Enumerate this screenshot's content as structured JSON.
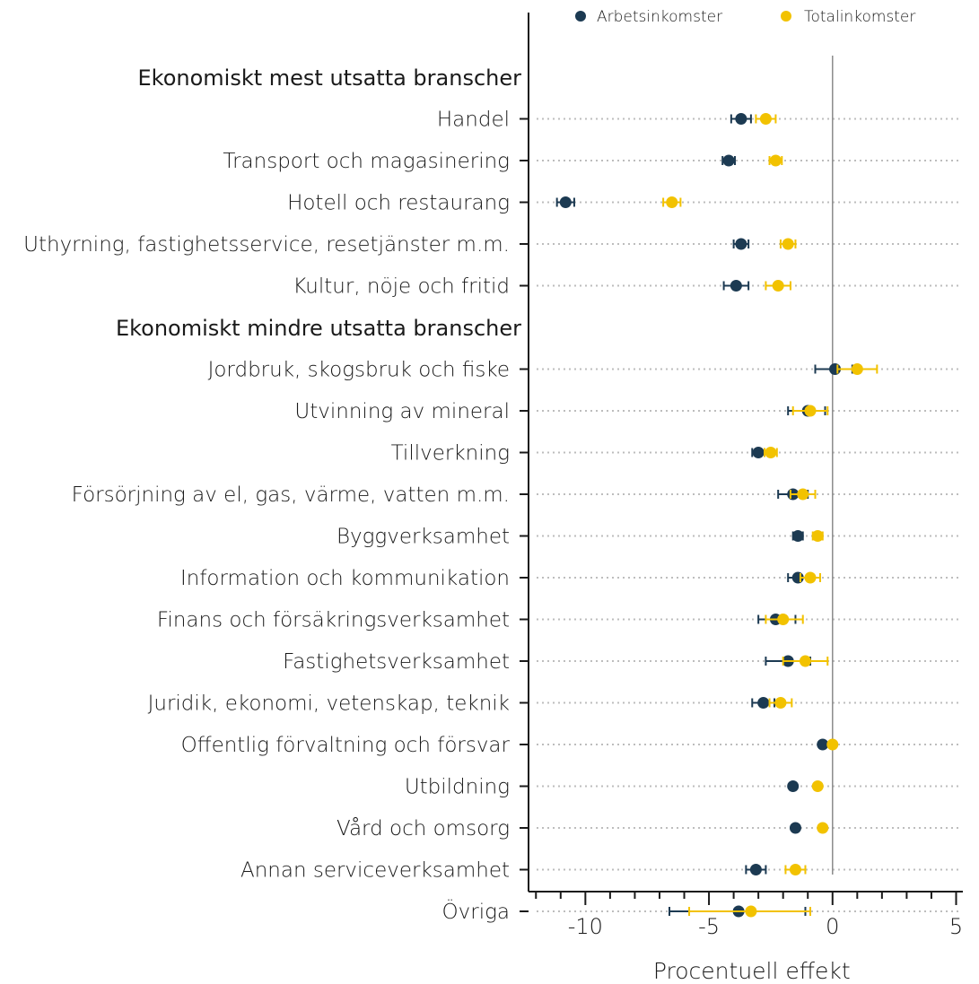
{
  "chart_data": {
    "type": "scatter",
    "subtype": "dot-and-whisker",
    "xlabel": "Procentuell effekt",
    "xlim": [
      -12.3,
      5.2
    ],
    "xticks": [
      -10,
      -5,
      0,
      5
    ],
    "legend_position": "top",
    "reference_line_x": 0,
    "grid": "dotted horizontal guides per category",
    "series": [
      {
        "name": "Arbetsinkomster",
        "color": "#1c3a52"
      },
      {
        "name": "Totalinkomster",
        "color": "#f2c200"
      }
    ],
    "groups": [
      {
        "label": "Ekonomiskt mest utsatta branscher",
        "rows": [
          {
            "label": "Handel",
            "arbete": {
              "est": -3.7,
              "lo": -4.1,
              "hi": -3.3
            },
            "total": {
              "est": -2.7,
              "lo": -3.1,
              "hi": -2.3
            }
          },
          {
            "label": "Transport och magasinering",
            "arbete": {
              "est": -4.2,
              "lo": -4.45,
              "hi": -3.95
            },
            "total": {
              "est": -2.3,
              "lo": -2.55,
              "hi": -2.05
            }
          },
          {
            "label": "Hotell och restaurang",
            "arbete": {
              "est": -10.8,
              "lo": -11.15,
              "hi": -10.45
            },
            "total": {
              "est": -6.5,
              "lo": -6.85,
              "hi": -6.15
            }
          },
          {
            "label": "Uthyrning, fastighetsservice, resetjänster m.m.",
            "arbete": {
              "est": -3.7,
              "lo": -4.0,
              "hi": -3.4
            },
            "total": {
              "est": -1.8,
              "lo": -2.1,
              "hi": -1.5
            }
          },
          {
            "label": "Kultur, nöje och fritid",
            "arbete": {
              "est": -3.9,
              "lo": -4.4,
              "hi": -3.4
            },
            "total": {
              "est": -2.2,
              "lo": -2.7,
              "hi": -1.7
            }
          }
        ]
      },
      {
        "label": "Ekonomiskt mindre utsatta branscher",
        "rows": [
          {
            "label": "Jordbruk, skogsbruk och fiske",
            "arbete": {
              "est": 0.1,
              "lo": -0.7,
              "hi": 0.8
            },
            "total": {
              "est": 1.0,
              "lo": 0.2,
              "hi": 1.8
            }
          },
          {
            "label": "Utvinning av mineral",
            "arbete": {
              "est": -1.0,
              "lo": -1.8,
              "hi": -0.3
            },
            "total": {
              "est": -0.9,
              "lo": -1.6,
              "hi": -0.2
            }
          },
          {
            "label": "Tillverkning",
            "arbete": {
              "est": -3.0,
              "lo": -3.25,
              "hi": -2.75
            },
            "total": {
              "est": -2.5,
              "lo": -2.75,
              "hi": -2.25
            }
          },
          {
            "label": "Försörjning av el, gas, värme, vatten m.m.",
            "arbete": {
              "est": -1.6,
              "lo": -2.2,
              "hi": -1.0
            },
            "total": {
              "est": -1.2,
              "lo": -1.7,
              "hi": -0.7
            }
          },
          {
            "label": "Byggverksamhet",
            "arbete": {
              "est": -1.4,
              "lo": -1.6,
              "hi": -1.2
            },
            "total": {
              "est": -0.6,
              "lo": -0.8,
              "hi": -0.4
            }
          },
          {
            "label": "Information och kommunikation",
            "arbete": {
              "est": -1.4,
              "lo": -1.8,
              "hi": -1.0
            },
            "total": {
              "est": -0.9,
              "lo": -1.3,
              "hi": -0.5
            }
          },
          {
            "label": "Finans och försäkringsverksamhet",
            "arbete": {
              "est": -2.3,
              "lo": -3.0,
              "hi": -1.5
            },
            "total": {
              "est": -2.0,
              "lo": -2.7,
              "hi": -1.2
            }
          },
          {
            "label": "Fastighetsverksamhet",
            "arbete": {
              "est": -1.8,
              "lo": -2.7,
              "hi": -0.9
            },
            "total": {
              "est": -1.1,
              "lo": -2.0,
              "hi": -0.2
            }
          },
          {
            "label": "Juridik, ekonomi, vetenskap, teknik",
            "arbete": {
              "est": -2.8,
              "lo": -3.25,
              "hi": -2.35
            },
            "total": {
              "est": -2.1,
              "lo": -2.55,
              "hi": -1.65
            }
          },
          {
            "label": "Offentlig förvaltning och försvar",
            "arbete": {
              "est": -0.4,
              "lo": -0.5,
              "hi": -0.3
            },
            "total": {
              "est": 0.0,
              "lo": -0.1,
              "hi": 0.1
            }
          },
          {
            "label": "Utbildning",
            "arbete": {
              "est": -1.6,
              "lo": -1.7,
              "hi": -1.5
            },
            "total": {
              "est": -0.6,
              "lo": -0.7,
              "hi": -0.5
            }
          },
          {
            "label": "Vård och omsorg",
            "arbete": {
              "est": -1.5,
              "lo": -1.6,
              "hi": -1.4
            },
            "total": {
              "est": -0.4,
              "lo": -0.5,
              "hi": -0.3
            }
          },
          {
            "label": "Annan serviceverksamhet",
            "arbete": {
              "est": -3.1,
              "lo": -3.5,
              "hi": -2.7
            },
            "total": {
              "est": -1.5,
              "lo": -1.9,
              "hi": -1.1
            }
          },
          {
            "label": "Övriga",
            "arbete": {
              "est": -3.8,
              "lo": -6.6,
              "hi": -1.1
            },
            "total": {
              "est": -3.3,
              "lo": -5.8,
              "hi": -0.9
            }
          }
        ]
      }
    ]
  }
}
